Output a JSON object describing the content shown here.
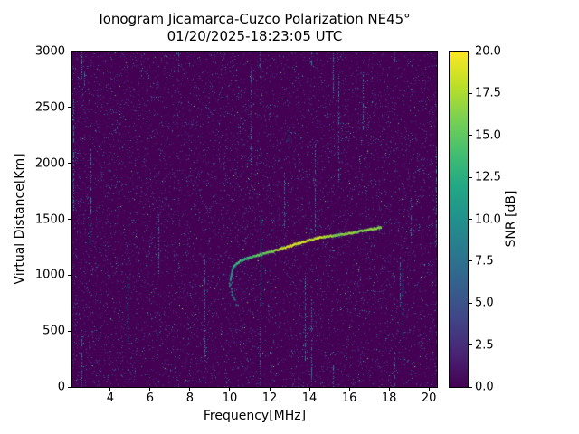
{
  "chart_data": {
    "type": "heatmap",
    "title": "Ionogram Jicamarca-Cuzco Polarization NE45°",
    "subtitle": "01/20/2025-18:23:05 UTC",
    "xlabel": "Frequency[MHz]",
    "ylabel": "Virtual Distance[Km]",
    "colorbar_label": "SNR [dB]",
    "xlim": [
      2.1,
      20.4
    ],
    "ylim": [
      0,
      3000
    ],
    "clim": [
      0,
      20
    ],
    "x_ticks": [
      4,
      6,
      8,
      10,
      12,
      14,
      16,
      18,
      20
    ],
    "x_tick_labels": [
      "4",
      "6",
      "8",
      "10",
      "12",
      "14",
      "16",
      "18",
      "20"
    ],
    "y_ticks": [
      0,
      500,
      1000,
      1500,
      2000,
      2500,
      3000
    ],
    "y_tick_labels": [
      "0",
      "500",
      "1000",
      "1500",
      "2000",
      "2500",
      "3000"
    ],
    "colorbar_ticks": [
      0,
      2.5,
      5,
      7.5,
      10,
      12.5,
      15,
      17.5,
      20
    ],
    "colorbar_tick_labels": [
      "0.0",
      "2.5",
      "5.0",
      "7.5",
      "10.0",
      "12.5",
      "15.0",
      "17.5",
      "20.0"
    ],
    "background_color": "#440154",
    "colormap": "viridis",
    "colormap_stops": [
      "#440154",
      "#482475",
      "#414487",
      "#355f8d",
      "#2a788e",
      "#21918c",
      "#22a884",
      "#44bf70",
      "#7ad151",
      "#bddf26",
      "#fde725"
    ],
    "noise": {
      "seed": 1234567,
      "dot_count": 11000,
      "streak_count": 26,
      "typical_snr_db": [
        0,
        8
      ]
    },
    "trace": {
      "name": "F-region echo trace",
      "points": [
        [
          10.0,
          955,
          10
        ],
        [
          10.05,
          1000,
          11
        ],
        [
          10.1,
          1045,
          12
        ],
        [
          10.2,
          1085,
          13
        ],
        [
          10.35,
          1110,
          13
        ],
        [
          10.5,
          1125,
          14
        ],
        [
          10.7,
          1140,
          13
        ],
        [
          10.9,
          1152,
          14
        ],
        [
          11.1,
          1163,
          14
        ],
        [
          11.4,
          1178,
          15
        ],
        [
          11.7,
          1192,
          15
        ],
        [
          12.0,
          1207,
          16
        ],
        [
          12.3,
          1222,
          17
        ],
        [
          12.6,
          1238,
          18
        ],
        [
          12.9,
          1253,
          19
        ],
        [
          13.2,
          1270,
          19
        ],
        [
          13.5,
          1288,
          19
        ],
        [
          13.8,
          1305,
          19
        ],
        [
          14.1,
          1318,
          18
        ],
        [
          14.4,
          1330,
          19
        ],
        [
          14.7,
          1340,
          18
        ],
        [
          15.0,
          1348,
          17
        ],
        [
          15.3,
          1355,
          16
        ],
        [
          15.6,
          1362,
          16
        ],
        [
          16.0,
          1375,
          17
        ],
        [
          16.4,
          1388,
          16
        ],
        [
          16.8,
          1400,
          16
        ],
        [
          17.2,
          1413,
          17
        ],
        [
          17.6,
          1428,
          16
        ]
      ]
    },
    "secondary_trace": {
      "name": "lower faint echo hook",
      "points": [
        [
          9.95,
          940,
          12
        ],
        [
          10.0,
          900,
          11
        ],
        [
          10.05,
          865,
          12
        ],
        [
          10.1,
          830,
          11
        ],
        [
          10.2,
          790,
          12
        ],
        [
          10.3,
          755,
          11
        ],
        [
          10.4,
          725,
          12
        ]
      ]
    }
  }
}
